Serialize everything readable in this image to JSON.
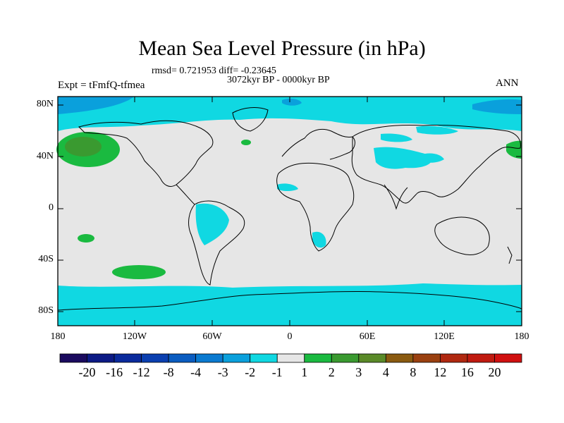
{
  "title": "Mean Sea Level Pressure (in hPa)",
  "stats": "rmsd= 0.721953 diff= -0.23645",
  "period": "3072kyr BP - 0000kyr BP",
  "experiment": "Expt = tFmfQ-tfmea",
  "season": "ANN",
  "lat_ticks": [
    "80N",
    "40N",
    "0",
    "40S",
    "80S"
  ],
  "lon_ticks": [
    "180",
    "120W",
    "60W",
    "0",
    "60E",
    "120E",
    "180"
  ],
  "colorbar": {
    "labels": [
      "-20",
      "-16",
      "-12",
      "-8",
      "-4",
      "-3",
      "-2",
      "-1",
      "1",
      "2",
      "3",
      "4",
      "8",
      "12",
      "16",
      "20"
    ],
    "colors": [
      "#1a0a5e",
      "#0c1a85",
      "#0a2a9c",
      "#0a3fb0",
      "#0a5cc0",
      "#0a7ad0",
      "#0aa0dc",
      "#10d8e2",
      "#e6e6e6",
      "#1aba40",
      "#3a9a30",
      "#5a8a28",
      "#8a5a10",
      "#9a4010",
      "#b02810",
      "#c01a10",
      "#d01010"
    ]
  }
}
